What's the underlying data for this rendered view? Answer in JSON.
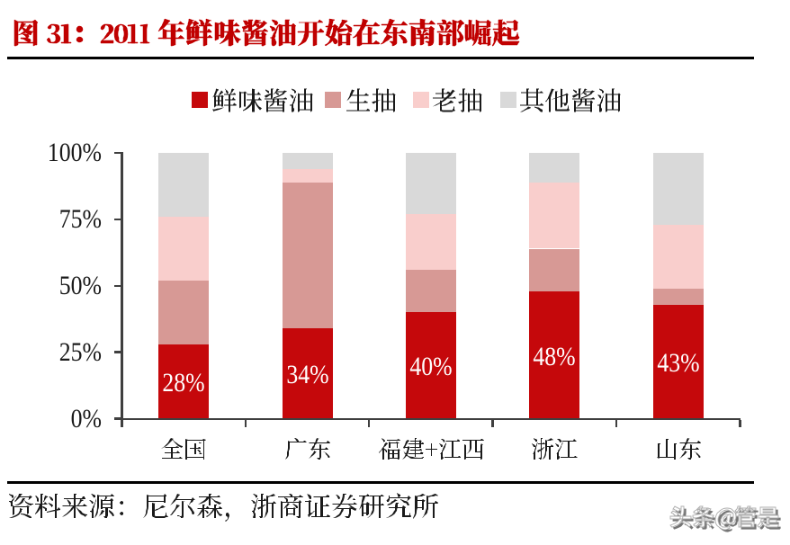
{
  "figure": {
    "label": "图 31",
    "title": "2011 年鲜味酱油开始在东南部崛起",
    "full_title": "图 31：2011 年鲜味酱油开始在东南部崛起"
  },
  "chart_data": {
    "type": "bar",
    "stacked": true,
    "unit": "percent",
    "title": "2011 年鲜味酱油开始在东南部崛起",
    "categories": [
      "全国",
      "广东",
      "福建+江西",
      "浙江",
      "山东"
    ],
    "series": [
      {
        "name": "鲜味酱油",
        "color": "#C5080B",
        "values": [
          28,
          34,
          40,
          48,
          43
        ]
      },
      {
        "name": "生抽",
        "color": "#D79995",
        "values": [
          24,
          55,
          16,
          16,
          6
        ]
      },
      {
        "name": "老抽",
        "color": "#F9CECC",
        "values": [
          24,
          5,
          21,
          25,
          24
        ]
      },
      {
        "name": "其他酱油",
        "color": "#D9D9D9",
        "values": [
          24,
          6,
          23,
          11,
          27
        ]
      }
    ],
    "data_labels": [
      "28%",
      "34%",
      "40%",
      "48%",
      "43%"
    ],
    "y_axis": {
      "ticks": [
        "100%",
        "75%",
        "50%",
        "25%",
        "0%"
      ],
      "min": 0,
      "max": 100
    },
    "legend_position": "top",
    "grid": false
  },
  "source_note": {
    "text": "资料来源：尼尔森，浙商证券研究所"
  },
  "watermark": {
    "text": "头条@管是"
  },
  "colors": {
    "dark": "#C5080B",
    "med": "#D79995",
    "pink": "#F9CECC",
    "gray": "#D9D9D9",
    "title": "#C00000",
    "rule": "#000000",
    "axis": "#3F3F3F",
    "text": "#1A1A1A"
  }
}
